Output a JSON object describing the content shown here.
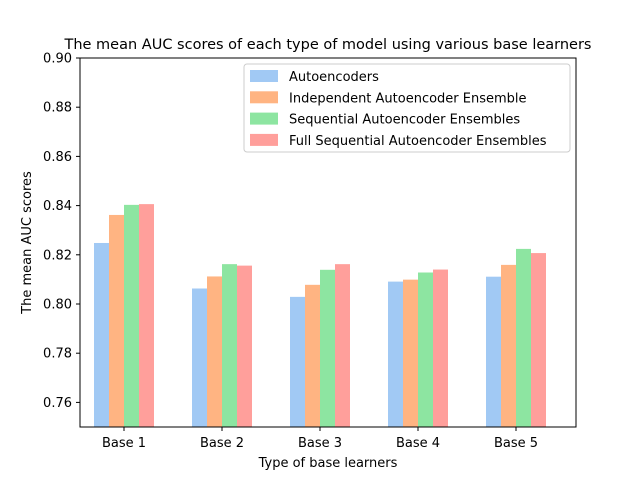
{
  "chart_data": {
    "type": "bar",
    "title": "The mean AUC scores of each type of model using various base learners",
    "xlabel": "Type of base learners",
    "ylabel": "The mean AUC scores",
    "categories": [
      "Base 1",
      "Base 2",
      "Base 3",
      "Base 4",
      "Base 5"
    ],
    "ylim": [
      0.75,
      0.9
    ],
    "yticks": [
      "0.76",
      "0.78",
      "0.80",
      "0.82",
      "0.84",
      "0.86",
      "0.88",
      "0.90"
    ],
    "grid": false,
    "legend_position": "top-right",
    "series": [
      {
        "name": "Autoencoders",
        "color": "#a1c9f4",
        "values": [
          0.8248,
          0.8063,
          0.8029,
          0.8091,
          0.8111
        ]
      },
      {
        "name": "Independent Autoencoder Ensemble",
        "color": "#ffb482",
        "values": [
          0.8362,
          0.8112,
          0.8078,
          0.8099,
          0.8159
        ]
      },
      {
        "name": "Sequential Autoencoder Ensembles",
        "color": "#8de5a1",
        "values": [
          0.8403,
          0.8162,
          0.8139,
          0.8128,
          0.8224
        ]
      },
      {
        "name": "Full Sequential Autoencoder Ensembles",
        "color": "#ff9f9b",
        "values": [
          0.8406,
          0.8156,
          0.8162,
          0.814,
          0.8207
        ]
      }
    ]
  }
}
